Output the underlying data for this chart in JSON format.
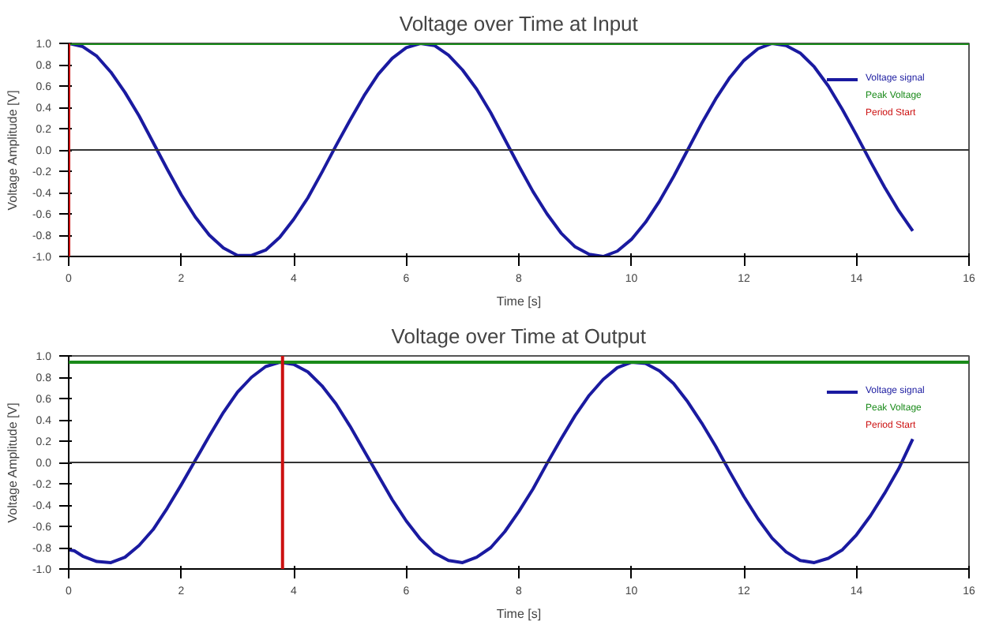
{
  "chart_data": [
    {
      "type": "line",
      "title": "Voltage over Time at Input",
      "xlabel": "Time [s]",
      "ylabel": "Voltage Amplitude [V]",
      "x": [
        0,
        0.25,
        0.5,
        0.75,
        1,
        1.25,
        1.5,
        1.75,
        2,
        2.25,
        2.5,
        2.75,
        3,
        3.25,
        3.5,
        3.75,
        4,
        4.25,
        4.5,
        4.75,
        5,
        5.25,
        5.5,
        5.75,
        6,
        6.25,
        6.5,
        6.75,
        7,
        7.25,
        7.5,
        7.75,
        8,
        8.25,
        8.5,
        8.75,
        9,
        9.25,
        9.5,
        9.75,
        10,
        10.25,
        10.5,
        10.75,
        11,
        11.25,
        11.5,
        11.75,
        12,
        12.25,
        12.5,
        12.75,
        13,
        13.25,
        13.5,
        13.75,
        14,
        14.25,
        14.5,
        14.75,
        15
      ],
      "series": [
        {
          "name": "Voltage signal",
          "color": "#1a1aa0",
          "values": [
            1.0,
            0.97,
            0.88,
            0.73,
            0.54,
            0.32,
            0.07,
            -0.18,
            -0.42,
            -0.63,
            -0.8,
            -0.92,
            -0.99,
            -0.99,
            -0.94,
            -0.82,
            -0.65,
            -0.45,
            -0.21,
            0.04,
            0.28,
            0.51,
            0.71,
            0.86,
            0.96,
            1.0,
            0.98,
            0.89,
            0.75,
            0.57,
            0.35,
            0.1,
            -0.15,
            -0.39,
            -0.6,
            -0.78,
            -0.91,
            -0.98,
            -1.0,
            -0.95,
            -0.84,
            -0.68,
            -0.48,
            -0.25,
            0.0,
            0.25,
            0.48,
            0.68,
            0.84,
            0.95,
            1.0,
            0.98,
            0.91,
            0.78,
            0.6,
            0.38,
            0.14,
            -0.11,
            -0.35,
            -0.57,
            -0.76
          ]
        }
      ],
      "ref_lines": [
        {
          "axis": "y",
          "value": 0,
          "color": "#333333"
        },
        {
          "axis": "y",
          "value": 1.0,
          "label": "Peak Voltage",
          "color": "#1a8a1a"
        },
        {
          "axis": "x",
          "value": 0,
          "label": "Period Start",
          "color": "#cc1111"
        }
      ],
      "xlim": [
        0,
        16
      ],
      "xticks": [
        0,
        2,
        4,
        6,
        8,
        10,
        12,
        14,
        16
      ],
      "ylim": [
        -1,
        1
      ],
      "yticks": [
        {
          "value": -1,
          "label": "-1.0"
        },
        {
          "value": -0.8,
          "label": "-0.8"
        },
        {
          "value": -0.6,
          "label": "-0.6"
        },
        {
          "value": -0.4,
          "label": "-0.4"
        },
        {
          "value": -0.2,
          "label": "-0.2"
        },
        {
          "value": 0,
          "label": "0.0"
        },
        {
          "value": 0.2,
          "label": "0.2"
        },
        {
          "value": 0.4,
          "label": "0.4"
        },
        {
          "value": 0.6,
          "label": "0.6"
        },
        {
          "value": 0.8,
          "label": "0.8"
        },
        {
          "value": 1,
          "label": "1.0"
        }
      ],
      "grid": false,
      "legend": "top right"
    },
    {
      "type": "line",
      "title": "Voltage over Time at Output",
      "xlabel": "Time [s]",
      "ylabel": "Voltage Amplitude [V]",
      "x": [
        0,
        0.1,
        0.25,
        0.5,
        0.75,
        1,
        1.25,
        1.5,
        1.75,
        2,
        2.25,
        2.5,
        2.75,
        3,
        3.25,
        3.5,
        3.75,
        4,
        4.25,
        4.5,
        4.75,
        5,
        5.25,
        5.5,
        5.75,
        6,
        6.25,
        6.5,
        6.75,
        7,
        7.25,
        7.5,
        7.75,
        8,
        8.25,
        8.5,
        8.75,
        9,
        9.25,
        9.5,
        9.75,
        10,
        10.25,
        10.5,
        10.75,
        11,
        11.25,
        11.5,
        11.75,
        12,
        12.25,
        12.5,
        12.75,
        13,
        13.25,
        13.5,
        13.75,
        14,
        14.25,
        14.5,
        14.75,
        15
      ],
      "series": [
        {
          "name": "Voltage signal",
          "color": "#1a1aa0",
          "values": [
            -0.82,
            -0.83,
            -0.88,
            -0.93,
            -0.94,
            -0.89,
            -0.78,
            -0.63,
            -0.43,
            -0.21,
            0.02,
            0.25,
            0.47,
            0.66,
            0.8,
            0.9,
            0.94,
            0.92,
            0.85,
            0.72,
            0.55,
            0.34,
            0.11,
            -0.12,
            -0.35,
            -0.55,
            -0.72,
            -0.85,
            -0.92,
            -0.94,
            -0.89,
            -0.8,
            -0.65,
            -0.46,
            -0.25,
            -0.01,
            0.22,
            0.44,
            0.63,
            0.78,
            0.89,
            0.94,
            0.93,
            0.86,
            0.74,
            0.57,
            0.37,
            0.15,
            -0.09,
            -0.32,
            -0.53,
            -0.71,
            -0.84,
            -0.92,
            -0.94,
            -0.9,
            -0.82,
            -0.68,
            -0.5,
            -0.29,
            -0.06,
            0.22
          ]
        }
      ],
      "ref_lines": [
        {
          "axis": "y",
          "value": 0,
          "color": "#333333"
        },
        {
          "axis": "y",
          "value": 0.94,
          "label": "Peak Voltage",
          "color": "#1a8a1a"
        },
        {
          "axis": "x",
          "value": 3.8,
          "label": "Period Start",
          "color": "#cc1111"
        }
      ],
      "xlim": [
        0,
        16
      ],
      "xticks": [
        0,
        2,
        4,
        6,
        8,
        10,
        12,
        14,
        16
      ],
      "ylim": [
        -1,
        1
      ],
      "yticks": [
        {
          "value": -1,
          "label": "-1.0"
        },
        {
          "value": -0.8,
          "label": "-0.8"
        },
        {
          "value": -0.6,
          "label": "-0.6"
        },
        {
          "value": -0.4,
          "label": "-0.4"
        },
        {
          "value": -0.2,
          "label": "-0.2"
        },
        {
          "value": 0,
          "label": "0.0"
        },
        {
          "value": 0.2,
          "label": "0.2"
        },
        {
          "value": 0.4,
          "label": "0.4"
        },
        {
          "value": 0.6,
          "label": "0.6"
        },
        {
          "value": 0.8,
          "label": "0.8"
        },
        {
          "value": 1,
          "label": "1.0"
        }
      ],
      "grid": false,
      "legend": "top right"
    }
  ]
}
